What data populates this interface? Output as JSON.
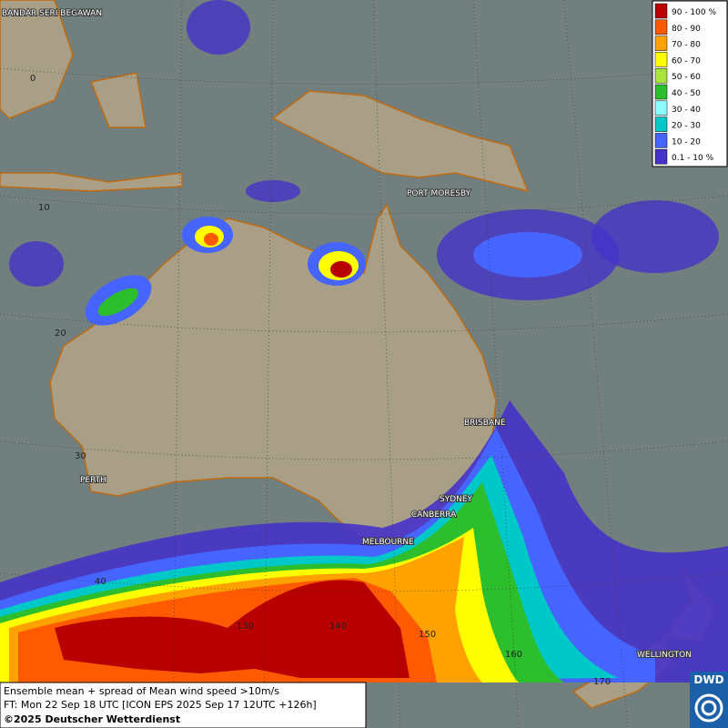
{
  "legend": {
    "items": [
      {
        "label": "90 - 100 %",
        "color": "#b80000"
      },
      {
        "label": "80 - 90",
        "color": "#ff5a00"
      },
      {
        "label": "70 - 80",
        "color": "#ffa200"
      },
      {
        "label": "60 - 70",
        "color": "#ffff00"
      },
      {
        "label": "50 - 60",
        "color": "#a8e63c"
      },
      {
        "label": "40 - 50",
        "color": "#2cbe2c"
      },
      {
        "label": "30 - 40",
        "color": "#8cffff"
      },
      {
        "label": "20 - 30",
        "color": "#00c8c8"
      },
      {
        "label": "10 - 20",
        "color": "#4664ff"
      },
      {
        "label": "0.1 - 10 %",
        "color": "#4632c8"
      }
    ]
  },
  "cities": [
    "BANDAR SERI BEGAWAN",
    "PORT MORESBY",
    "BRISBANE",
    "SYDNEY",
    "CANBERRA",
    "MELBOURNE",
    "PERTH",
    "WELLINGTON"
  ],
  "grid_labels": [
    "0",
    "10",
    "20",
    "30",
    "40",
    "130",
    "140",
    "150",
    "160",
    "170"
  ],
  "footer": {
    "line1": "Ensemble mean + spread of Mean wind speed >10m/s",
    "line2": "FT: Mon 22 Sep 18 UTC [ICON EPS 2025 Sep 17 12UTC +126h]",
    "line3": "©2025 Deutscher Wetterdienst"
  },
  "logo": "DWD"
}
